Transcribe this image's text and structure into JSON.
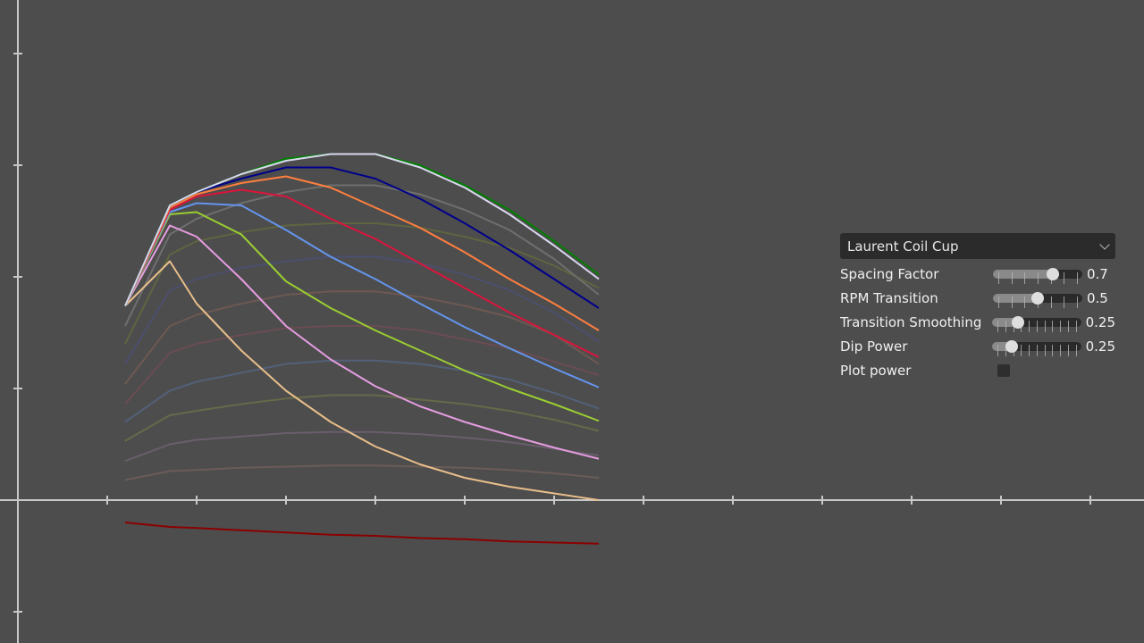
{
  "chart_data": {
    "type": "line",
    "title": "",
    "xlabel": "",
    "ylabel": "",
    "xlim": [
      -0.2,
      12.6
    ],
    "ylim": [
      -1.28,
      4.48
    ],
    "x_ticks": [
      1,
      2,
      3,
      4,
      5,
      6,
      7,
      8,
      9,
      10,
      11,
      12
    ],
    "y_ticks": [
      -1,
      1,
      2,
      3,
      4
    ],
    "grid": false,
    "axis_color": "#c8c8c8",
    "x": [
      1.2,
      1.7,
      2.0,
      2.5,
      3.0,
      3.5,
      4.0,
      4.5,
      5.0,
      5.5,
      6.0,
      6.5
    ],
    "series": [
      {
        "color": "#6a5c58",
        "values": [
          0.18,
          0.26,
          0.27,
          0.29,
          0.3,
          0.31,
          0.31,
          0.3,
          0.29,
          0.27,
          0.24,
          0.2
        ]
      },
      {
        "color": "#6a5e6c",
        "values": [
          0.35,
          0.5,
          0.54,
          0.57,
          0.6,
          0.61,
          0.61,
          0.59,
          0.56,
          0.52,
          0.46,
          0.4
        ]
      },
      {
        "color": "#666a4a",
        "values": [
          0.53,
          0.76,
          0.8,
          0.86,
          0.91,
          0.94,
          0.94,
          0.9,
          0.86,
          0.8,
          0.72,
          0.62
        ]
      },
      {
        "color": "#526078",
        "values": [
          0.7,
          0.98,
          1.06,
          1.14,
          1.22,
          1.25,
          1.25,
          1.22,
          1.16,
          1.08,
          0.96,
          0.82
        ]
      },
      {
        "color": "#6a4c52",
        "values": [
          0.86,
          1.32,
          1.4,
          1.48,
          1.54,
          1.56,
          1.56,
          1.52,
          1.44,
          1.36,
          1.24,
          1.12
        ]
      },
      {
        "color": "#6e5852",
        "values": [
          1.04,
          1.56,
          1.66,
          1.76,
          1.84,
          1.87,
          1.87,
          1.82,
          1.74,
          1.64,
          1.48,
          1.22
        ]
      },
      {
        "color": "#4c4f6e",
        "values": [
          1.22,
          1.88,
          1.98,
          2.08,
          2.14,
          2.18,
          2.18,
          2.12,
          2.02,
          1.88,
          1.68,
          1.42
        ]
      },
      {
        "color": "#5f6540",
        "values": [
          1.4,
          2.2,
          2.32,
          2.4,
          2.46,
          2.48,
          2.48,
          2.44,
          2.36,
          2.26,
          2.1,
          1.9
        ]
      },
      {
        "color": "#6e6e6e",
        "values": [
          1.56,
          2.38,
          2.52,
          2.66,
          2.76,
          2.82,
          2.82,
          2.74,
          2.6,
          2.42,
          2.16,
          1.84
        ]
      },
      {
        "color": "#e8be8a",
        "values": [
          1.74,
          2.14,
          1.76,
          1.34,
          0.98,
          0.7,
          0.48,
          0.32,
          0.2,
          0.12,
          0.06,
          0.0
        ]
      },
      {
        "color": "#e59ce0",
        "values": [
          1.74,
          2.46,
          2.36,
          1.98,
          1.56,
          1.26,
          1.02,
          0.84,
          0.7,
          0.58,
          0.47,
          0.37
        ]
      },
      {
        "color": "#9acd32",
        "values": [
          1.74,
          2.56,
          2.58,
          2.38,
          1.96,
          1.72,
          1.52,
          1.34,
          1.16,
          1.0,
          0.86,
          0.71
        ]
      },
      {
        "color": "#6495ed",
        "values": [
          1.74,
          2.58,
          2.66,
          2.64,
          2.42,
          2.18,
          1.98,
          1.76,
          1.55,
          1.36,
          1.18,
          1.01
        ]
      },
      {
        "color": "#dc143c",
        "values": [
          1.74,
          2.6,
          2.72,
          2.78,
          2.72,
          2.52,
          2.34,
          2.12,
          1.9,
          1.68,
          1.48,
          1.28
        ]
      },
      {
        "color": "#ff7f3f",
        "values": [
          1.74,
          2.62,
          2.74,
          2.84,
          2.9,
          2.8,
          2.62,
          2.44,
          2.22,
          1.98,
          1.76,
          1.52
        ]
      },
      {
        "color": "#00008b",
        "values": [
          1.74,
          2.64,
          2.76,
          2.88,
          2.98,
          2.98,
          2.88,
          2.7,
          2.48,
          2.24,
          1.98,
          1.72
        ]
      },
      {
        "color": "#008000",
        "values": [
          1.74,
          2.64,
          2.76,
          2.92,
          3.06,
          3.1,
          3.1,
          3.0,
          2.82,
          2.6,
          2.32,
          2.02
        ]
      },
      {
        "color": "#d8d8ee",
        "values": [
          1.74,
          2.64,
          2.76,
          2.92,
          3.04,
          3.1,
          3.1,
          2.98,
          2.8,
          2.56,
          2.28,
          1.98
        ]
      },
      {
        "color": "#8b0000",
        "values": [
          -0.2,
          -0.24,
          -0.25,
          -0.27,
          -0.29,
          -0.31,
          -0.32,
          -0.34,
          -0.35,
          -0.37,
          -0.38,
          -0.39
        ]
      }
    ]
  },
  "panel": {
    "dropdown": {
      "selected": "Laurent Coil Cup"
    },
    "sliders": [
      {
        "label": "Spacing Factor",
        "value": "0.7",
        "fraction": 0.7,
        "ticks": 7
      },
      {
        "label": "RPM Transition",
        "value": "0.5",
        "fraction": 0.5,
        "ticks": 7
      },
      {
        "label": "Transition Smoothing",
        "value": "0.25",
        "fraction": 0.25,
        "ticks": 11
      },
      {
        "label": "Dip Power",
        "value": "0.25",
        "fraction": 0.17,
        "ticks": 11
      }
    ],
    "checkbox": {
      "label": "Plot power",
      "checked": false
    }
  }
}
